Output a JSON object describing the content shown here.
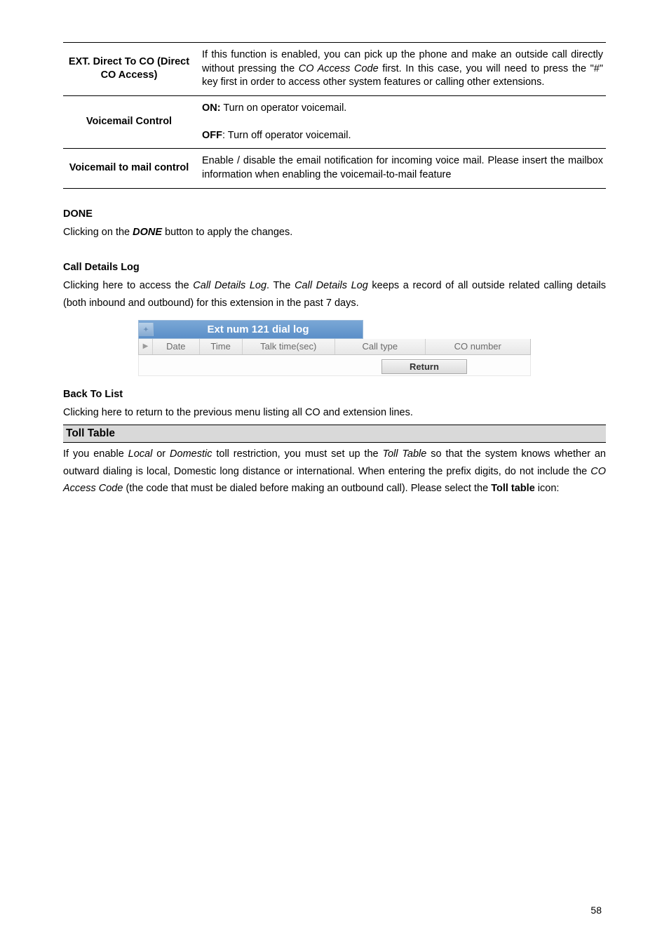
{
  "table": {
    "rows": [
      {
        "label": "EXT. Direct To CO (Direct CO Access)",
        "desc": "If this function is enabled, you can pick up the phone and make an outside call directly without pressing the <span class='italic'>CO Access Code</span> first. In this case, you will need to press the \"#\" key first in order to access other system features or calling other extensions."
      },
      {
        "label": "Voicemail Control",
        "desc": "<span class='bold'>ON:</span> Turn on operator voicemail.<br><br><span class='bold'>OFF</span>: Turn off operator voicemail."
      },
      {
        "label": "Voicemail to mail control",
        "desc": "Enable / disable the email notification for incoming voice mail. Please insert the mailbox information when enabling the voicemail-to-mail feature"
      }
    ]
  },
  "done": {
    "heading": "DONE",
    "text": "Clicking on the <span class='bolditalic'>DONE</span> button to apply the changes."
  },
  "calldetails": {
    "heading": "Call Details Log",
    "text": "Clicking here to access the <span class='italic'>Call Details Log</span>. The <span class='italic'>Call Details Log</span> keeps a record of all outside related calling details (both inbound and outbound) for this extension in the past 7 days."
  },
  "dial": {
    "title": "Ext num 121 dial log",
    "columns": {
      "date": "Date",
      "time": "Time",
      "talk": "Talk time(sec)",
      "calltype": "Call type",
      "conum": "CO number"
    },
    "col_widths": {
      "date": 66,
      "time": 60,
      "talk": 132,
      "calltype": 128,
      "conum": 150
    },
    "btn": "Return"
  },
  "back": {
    "heading": "Back To List",
    "text": "Clicking here to return to the previous menu listing all CO and extension lines."
  },
  "toll": {
    "bar": "Toll Table",
    "text": "If you enable <span class='italic'>Local</span> or <span class='italic'>Domestic</span> toll restriction, you must set up the <span class='italic'>Toll Table</span> so that the system knows whether an outward dialing is local, Domestic long distance or international. When entering the prefix digits, do not include the <span class='italic'>CO Access Code</span> (the code that must be dialed before making an outbound call). Please select the <span class='bold'>Toll table</span> icon:"
  },
  "pagenum": "58"
}
